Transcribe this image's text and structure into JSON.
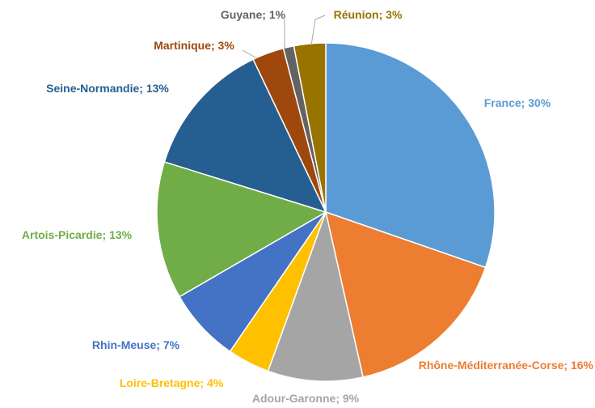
{
  "chart_data": {
    "type": "pie",
    "categories": [
      "France",
      "Rhône-Méditerranée-Corse",
      "Adour-Garonne",
      "Loire-Bretagne",
      "Rhin-Meuse",
      "Artois-Picardie",
      "Seine-Normandie",
      "Martinique",
      "Guyane",
      "Réunion"
    ],
    "values": [
      30,
      16,
      9,
      4,
      7,
      13,
      13,
      3,
      1,
      3
    ],
    "value_labels": [
      "30%",
      "16%",
      "9%",
      "4%",
      "7%",
      "13%",
      "13%",
      "3%",
      "1%",
      "3%"
    ],
    "separator": "; ",
    "colors": [
      "#5b9bd5",
      "#ed7d31",
      "#a5a5a5",
      "#ffc000",
      "#4472c4",
      "#70ad47",
      "#255e91",
      "#9e480e",
      "#636363",
      "#997300"
    ]
  }
}
